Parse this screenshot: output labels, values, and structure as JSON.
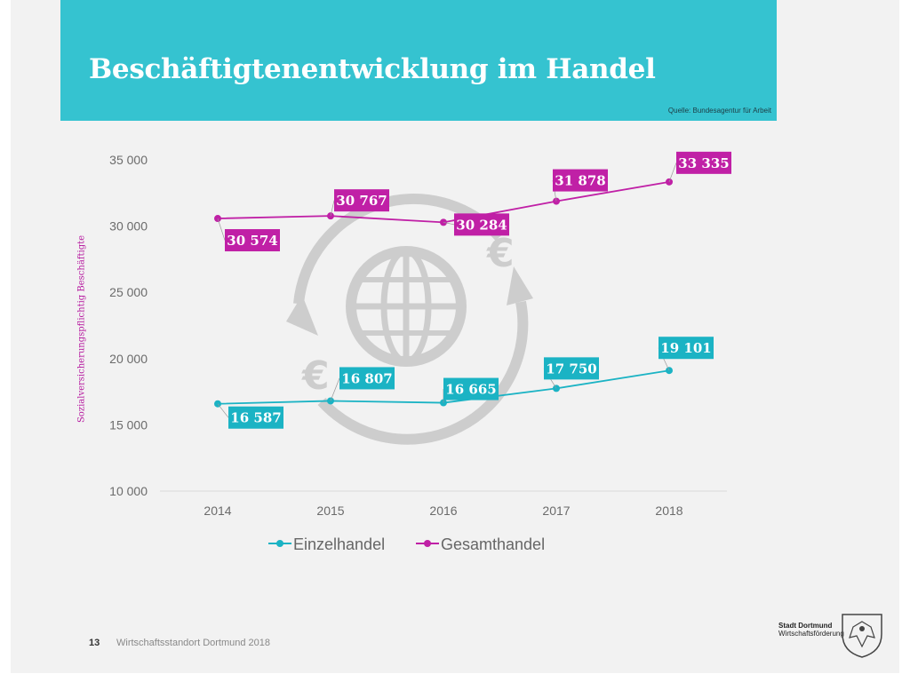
{
  "slide": {
    "title": "Beschäftigtenentwicklung im Handel",
    "source": "Quelle: Bundesagentur für Arbeit",
    "page_number": "13",
    "footer_text": "Wirtschaftsstandort Dortmund 2018",
    "logo_line1": "Stadt Dortmund",
    "logo_line2": "Wirtschaftsförderung"
  },
  "colors": {
    "header": "#35c3d0",
    "einzelhandel": "#1bb3c4",
    "gesamthandel": "#c020a6"
  },
  "icons": [
    "globe-icon",
    "circular-arrows-icon",
    "euro-icon",
    "city-crest-icon"
  ],
  "chart_data": {
    "type": "line",
    "categories": [
      "2014",
      "2015",
      "2016",
      "2017",
      "2018"
    ],
    "series": [
      {
        "name": "Einzelhandel",
        "values": [
          16587,
          16807,
          16665,
          17750,
          19101
        ],
        "labels": [
          "16 587",
          "16 807",
          "16 665",
          "17 750",
          "19 101"
        ]
      },
      {
        "name": "Gesamthandel",
        "values": [
          30574,
          30767,
          30284,
          31878,
          33335
        ],
        "labels": [
          "30 574",
          "30 767",
          "30 284",
          "31 878",
          "33 335"
        ]
      }
    ],
    "ylabel": "Sozialversicherungspflichtig Beschäftigte",
    "ylim": [
      10000,
      35000
    ],
    "yticks": [
      10000,
      15000,
      20000,
      25000,
      30000,
      35000
    ],
    "ytick_labels": [
      "10 000",
      "15 000",
      "20 000",
      "25 000",
      "30 000",
      "35 000"
    ],
    "legend_position": "bottom",
    "grid": false
  }
}
